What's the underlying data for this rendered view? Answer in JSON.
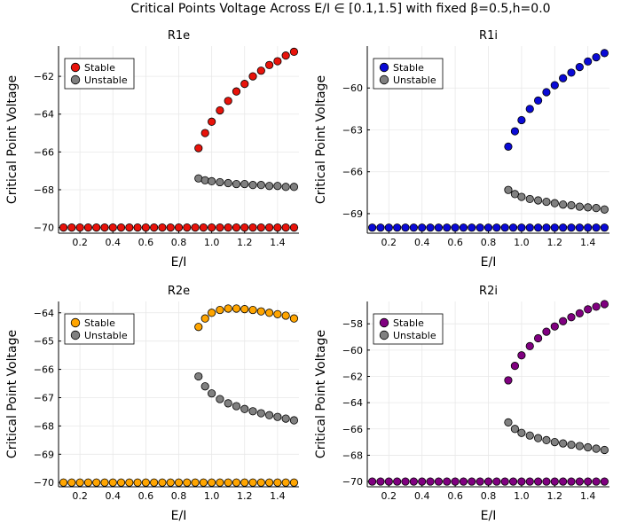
{
  "figure": {
    "title": "Critical Points Voltage Across E/I ∈ [0.1,1.5] with fixed β=0.5,h=0.0"
  },
  "chart_data": [
    {
      "type": "scatter",
      "title": "R1e",
      "xlabel": "E/I",
      "ylabel": "Critical Point Voltage",
      "xlim": [
        0.07,
        1.53
      ],
      "ylim": [
        -70.3,
        -60.4
      ],
      "xticks": [
        0.2,
        0.4,
        0.6,
        0.8,
        1.0,
        1.2,
        1.4
      ],
      "xtick_labels": [
        "0.2",
        "0.4",
        "0.6",
        "0.8",
        "1.0",
        "1.2",
        "1.4"
      ],
      "yticks": [
        -70,
        -68,
        -66,
        -64,
        -62
      ],
      "ytick_labels": [
        "−70",
        "−68",
        "−66",
        "−64",
        "−62"
      ],
      "legend_position": "top-left",
      "series": [
        {
          "name": "Stable",
          "color": "#e8130b",
          "x": [
            0.1,
            0.15,
            0.2,
            0.25,
            0.3,
            0.35,
            0.4,
            0.45,
            0.5,
            0.55,
            0.6,
            0.65,
            0.7,
            0.75,
            0.8,
            0.85,
            0.9,
            0.95,
            1.0,
            1.05,
            1.1,
            1.15,
            1.2,
            1.25,
            1.3,
            1.35,
            1.4,
            1.45,
            1.5,
            0.92,
            0.96,
            1.0,
            1.05,
            1.1,
            1.15,
            1.2,
            1.25,
            1.3,
            1.35,
            1.4,
            1.45,
            1.5
          ],
          "y": [
            -70,
            -70,
            -70,
            -70,
            -70,
            -70,
            -70,
            -70,
            -70,
            -70,
            -70,
            -70,
            -70,
            -70,
            -70,
            -70,
            -70,
            -70,
            -70,
            -70,
            -70,
            -70,
            -70,
            -70,
            -70,
            -70,
            -70,
            -70,
            -70,
            -65.8,
            -65.0,
            -64.4,
            -63.8,
            -63.3,
            -62.8,
            -62.4,
            -62.0,
            -61.7,
            -61.4,
            -61.2,
            -60.9,
            -60.7
          ]
        },
        {
          "name": "Unstable",
          "color": "#808080",
          "x": [
            0.92,
            0.96,
            1.0,
            1.05,
            1.1,
            1.15,
            1.2,
            1.25,
            1.3,
            1.35,
            1.4,
            1.45,
            1.5
          ],
          "y": [
            -67.4,
            -67.5,
            -67.55,
            -67.6,
            -67.65,
            -67.7,
            -67.7,
            -67.75,
            -67.75,
            -67.8,
            -67.8,
            -67.85,
            -67.85
          ]
        }
      ]
    },
    {
      "type": "scatter",
      "title": "R1i",
      "xlabel": "E/I",
      "ylabel": "Critical Point Voltage",
      "xlim": [
        0.07,
        1.53
      ],
      "ylim": [
        -70.4,
        -57.0
      ],
      "xticks": [
        0.2,
        0.4,
        0.6,
        0.8,
        1.0,
        1.2,
        1.4
      ],
      "xtick_labels": [
        "0.2",
        "0.4",
        "0.6",
        "0.8",
        "1.0",
        "1.2",
        "1.4"
      ],
      "yticks": [
        -69,
        -66,
        -63,
        -60
      ],
      "ytick_labels": [
        "−69",
        "−66",
        "−63",
        "−60"
      ],
      "legend_position": "top-left",
      "series": [
        {
          "name": "Stable",
          "color": "#0a0ad6",
          "x": [
            0.1,
            0.15,
            0.2,
            0.25,
            0.3,
            0.35,
            0.4,
            0.45,
            0.5,
            0.55,
            0.6,
            0.65,
            0.7,
            0.75,
            0.8,
            0.85,
            0.9,
            0.95,
            1.0,
            1.05,
            1.1,
            1.15,
            1.2,
            1.25,
            1.3,
            1.35,
            1.4,
            1.45,
            1.5,
            0.92,
            0.96,
            1.0,
            1.05,
            1.1,
            1.15,
            1.2,
            1.25,
            1.3,
            1.35,
            1.4,
            1.45,
            1.5
          ],
          "y": [
            -70,
            -70,
            -70,
            -70,
            -70,
            -70,
            -70,
            -70,
            -70,
            -70,
            -70,
            -70,
            -70,
            -70,
            -70,
            -70,
            -70,
            -70,
            -70,
            -70,
            -70,
            -70,
            -70,
            -70,
            -70,
            -70,
            -70,
            -70,
            -70,
            -64.2,
            -63.1,
            -62.3,
            -61.5,
            -60.9,
            -60.3,
            -59.8,
            -59.3,
            -58.9,
            -58.5,
            -58.1,
            -57.8,
            -57.5
          ]
        },
        {
          "name": "Unstable",
          "color": "#808080",
          "x": [
            0.92,
            0.96,
            1.0,
            1.05,
            1.1,
            1.15,
            1.2,
            1.25,
            1.3,
            1.35,
            1.4,
            1.45,
            1.5
          ],
          "y": [
            -67.3,
            -67.6,
            -67.8,
            -67.95,
            -68.05,
            -68.15,
            -68.25,
            -68.35,
            -68.4,
            -68.5,
            -68.55,
            -68.6,
            -68.7
          ]
        }
      ]
    },
    {
      "type": "scatter",
      "title": "R2e",
      "xlabel": "E/I",
      "ylabel": "Critical Point Voltage",
      "xlim": [
        0.07,
        1.53
      ],
      "ylim": [
        -70.15,
        -63.6
      ],
      "xticks": [
        0.2,
        0.4,
        0.6,
        0.8,
        1.0,
        1.2,
        1.4
      ],
      "xtick_labels": [
        "0.2",
        "0.4",
        "0.6",
        "0.8",
        "1.0",
        "1.2",
        "1.4"
      ],
      "yticks": [
        -70,
        -69,
        -68,
        -67,
        -66,
        -65,
        -64
      ],
      "ytick_labels": [
        "−70",
        "−69",
        "−68",
        "−67",
        "−66",
        "−65",
        "−64"
      ],
      "legend_position": "top-left",
      "series": [
        {
          "name": "Stable",
          "color": "#ffa500",
          "x": [
            0.1,
            0.15,
            0.2,
            0.25,
            0.3,
            0.35,
            0.4,
            0.45,
            0.5,
            0.55,
            0.6,
            0.65,
            0.7,
            0.75,
            0.8,
            0.85,
            0.9,
            0.95,
            1.0,
            1.05,
            1.1,
            1.15,
            1.2,
            1.25,
            1.3,
            1.35,
            1.4,
            1.45,
            1.5,
            0.92,
            0.96,
            1.0,
            1.05,
            1.1,
            1.15,
            1.2,
            1.25,
            1.3,
            1.35,
            1.4,
            1.45,
            1.5
          ],
          "y": [
            -70,
            -70,
            -70,
            -70,
            -70,
            -70,
            -70,
            -70,
            -70,
            -70,
            -70,
            -70,
            -70,
            -70,
            -70,
            -70,
            -70,
            -70,
            -70,
            -70,
            -70,
            -70,
            -70,
            -70,
            -70,
            -70,
            -70,
            -70,
            -70,
            -64.5,
            -64.2,
            -64.0,
            -63.9,
            -63.85,
            -63.85,
            -63.87,
            -63.9,
            -63.95,
            -64.0,
            -64.05,
            -64.1,
            -64.2
          ]
        },
        {
          "name": "Unstable",
          "color": "#808080",
          "x": [
            0.92,
            0.96,
            1.0,
            1.05,
            1.1,
            1.15,
            1.2,
            1.25,
            1.3,
            1.35,
            1.4,
            1.45,
            1.5
          ],
          "y": [
            -66.25,
            -66.6,
            -66.85,
            -67.05,
            -67.2,
            -67.3,
            -67.4,
            -67.48,
            -67.55,
            -67.62,
            -67.68,
            -67.74,
            -67.8
          ]
        }
      ]
    },
    {
      "type": "scatter",
      "title": "R2i",
      "xlabel": "E/I",
      "ylabel": "Critical Point Voltage",
      "xlim": [
        0.07,
        1.53
      ],
      "ylim": [
        -70.4,
        -56.3
      ],
      "xticks": [
        0.2,
        0.4,
        0.6,
        0.8,
        1.0,
        1.2,
        1.4
      ],
      "xtick_labels": [
        "0.2",
        "0.4",
        "0.6",
        "0.8",
        "1.0",
        "1.2",
        "1.4"
      ],
      "yticks": [
        -70,
        -68,
        -66,
        -64,
        -62,
        -60,
        -58
      ],
      "ytick_labels": [
        "−70",
        "−68",
        "−66",
        "−64",
        "−62",
        "−60",
        "−58"
      ],
      "legend_position": "top-left",
      "series": [
        {
          "name": "Stable",
          "color": "#800080",
          "x": [
            0.1,
            0.15,
            0.2,
            0.25,
            0.3,
            0.35,
            0.4,
            0.45,
            0.5,
            0.55,
            0.6,
            0.65,
            0.7,
            0.75,
            0.8,
            0.85,
            0.9,
            0.95,
            1.0,
            1.05,
            1.1,
            1.15,
            1.2,
            1.25,
            1.3,
            1.35,
            1.4,
            1.45,
            1.5,
            0.92,
            0.96,
            1.0,
            1.05,
            1.1,
            1.15,
            1.2,
            1.25,
            1.3,
            1.35,
            1.4,
            1.45,
            1.5
          ],
          "y": [
            -70,
            -70,
            -70,
            -70,
            -70,
            -70,
            -70,
            -70,
            -70,
            -70,
            -70,
            -70,
            -70,
            -70,
            -70,
            -70,
            -70,
            -70,
            -70,
            -70,
            -70,
            -70,
            -70,
            -70,
            -70,
            -70,
            -70,
            -70,
            -70,
            -62.3,
            -61.2,
            -60.4,
            -59.7,
            -59.1,
            -58.6,
            -58.2,
            -57.8,
            -57.5,
            -57.2,
            -56.9,
            -56.7,
            -56.5
          ]
        },
        {
          "name": "Unstable",
          "color": "#808080",
          "x": [
            0.92,
            0.96,
            1.0,
            1.05,
            1.1,
            1.15,
            1.2,
            1.25,
            1.3,
            1.35,
            1.4,
            1.45,
            1.5
          ],
          "y": [
            -65.5,
            -66.0,
            -66.3,
            -66.5,
            -66.7,
            -66.85,
            -67.0,
            -67.1,
            -67.2,
            -67.3,
            -67.4,
            -67.5,
            -67.6
          ]
        }
      ]
    }
  ]
}
